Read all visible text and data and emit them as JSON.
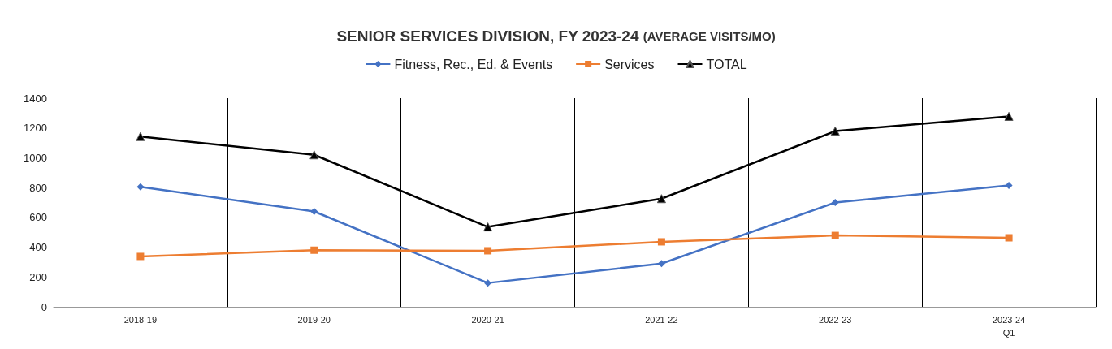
{
  "chart_data": {
    "type": "line",
    "title": "SENIOR SERVICES DIVISION, FY 2023-24",
    "subtitle": "(AVERAGE VISITS/MO)",
    "categories": [
      "2018-19",
      "2019-20",
      "2020-21",
      "2021-22",
      "2022-23",
      "2023-24\nQ1"
    ],
    "series": [
      {
        "name": "Fitness, Rec., Ed. & Events",
        "color": "#4472c4",
        "marker": "diamond",
        "values": [
          805,
          640,
          160,
          290,
          700,
          815
        ]
      },
      {
        "name": "Services",
        "color": "#ed7d31",
        "marker": "square",
        "values": [
          338,
          380,
          376,
          436,
          479,
          463
        ]
      },
      {
        "name": "TOTAL",
        "color": "#000000",
        "marker": "triangle",
        "values": [
          1143,
          1020,
          536,
          726,
          1179,
          1278
        ]
      }
    ],
    "ylim": [
      0,
      1400
    ],
    "yticks": [
      0,
      200,
      400,
      600,
      800,
      1000,
      1200,
      1400
    ],
    "grid": "x",
    "legend": "top"
  }
}
